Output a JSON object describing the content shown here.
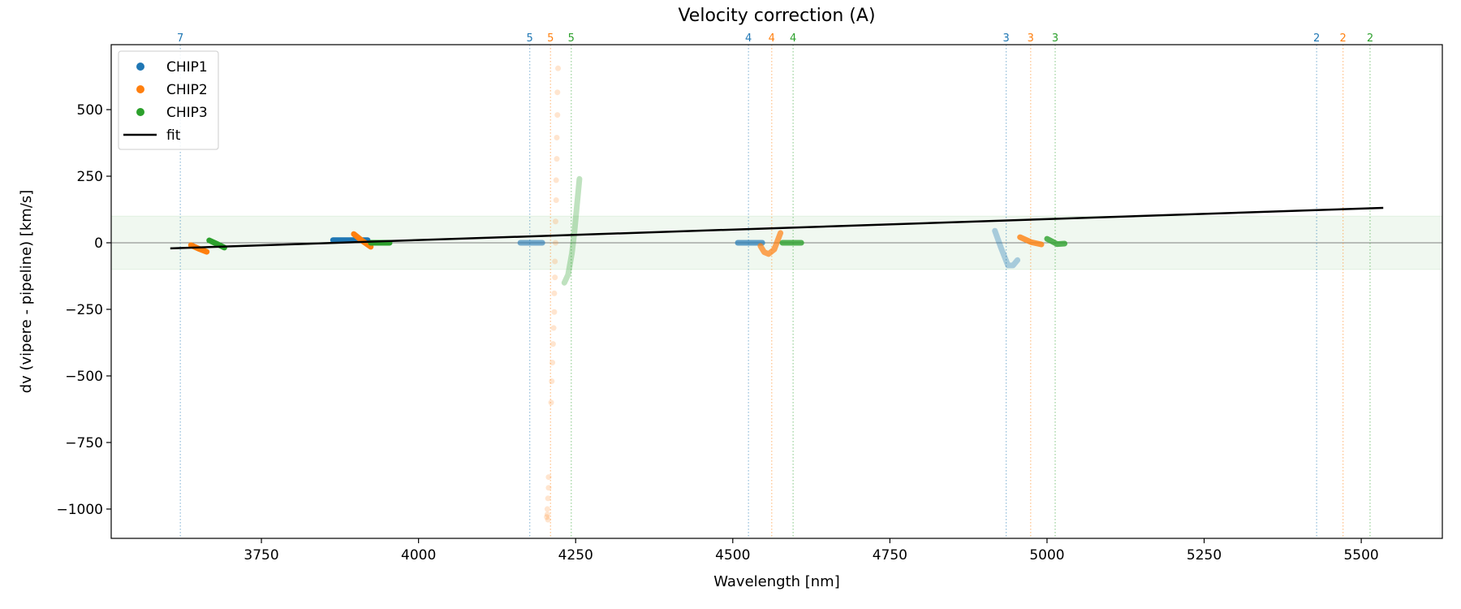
{
  "chart_data": {
    "type": "scatter",
    "title": "Velocity correction (A)",
    "xlabel": "Wavelength [nm]",
    "ylabel": "dv (vipere - pipeline) [km/s]",
    "xlim": [
      3511,
      5629
    ],
    "ylim": [
      -1110,
      744
    ],
    "xticks": [
      3750,
      4000,
      4250,
      4500,
      4750,
      5000,
      5250,
      5500
    ],
    "xtick_labels": [
      "3750",
      "4000",
      "4250",
      "4500",
      "4750",
      "5000",
      "5250",
      "5500"
    ],
    "yticks": [
      500,
      250,
      0,
      -250,
      -500,
      -750,
      -1000
    ],
    "ytick_labels": [
      "500",
      "250",
      "0",
      "−250",
      "−500",
      "−750",
      "−1000"
    ],
    "grid": false,
    "legend": {
      "placement": "top-left",
      "entries": [
        {
          "label": "CHIP1",
          "marker": "dot",
          "color": "#1f77b4"
        },
        {
          "label": "CHIP2",
          "marker": "dot",
          "color": "#ff7f0e"
        },
        {
          "label": "CHIP3",
          "marker": "dot",
          "color": "#2ca02c"
        },
        {
          "label": "fit",
          "marker": "line",
          "color": "#000000"
        }
      ]
    },
    "band": {
      "y": [
        -100,
        100
      ],
      "color": "#2ca02c"
    },
    "zero_line": 0,
    "order_markers": [
      {
        "label": "7",
        "x": 3621,
        "color": "#1f77b4"
      },
      {
        "label": "5",
        "x": 4177,
        "color": "#1f77b4"
      },
      {
        "label": "5",
        "x": 4210,
        "color": "#ff7f0e"
      },
      {
        "label": "5",
        "x": 4243,
        "color": "#2ca02c"
      },
      {
        "label": "4",
        "x": 4525,
        "color": "#1f77b4"
      },
      {
        "label": "4",
        "x": 4562,
        "color": "#ff7f0e"
      },
      {
        "label": "4",
        "x": 4596,
        "color": "#2ca02c"
      },
      {
        "label": "3",
        "x": 4935,
        "color": "#1f77b4"
      },
      {
        "label": "3",
        "x": 4974,
        "color": "#ff7f0e"
      },
      {
        "label": "3",
        "x": 5013,
        "color": "#2ca02c"
      },
      {
        "label": "2",
        "x": 5429,
        "color": "#1f77b4"
      },
      {
        "label": "2",
        "x": 5471,
        "color": "#ff7f0e"
      },
      {
        "label": "2",
        "x": 5514,
        "color": "#2ca02c"
      }
    ],
    "fit": {
      "x": [
        3605,
        5535
      ],
      "y": [
        -21,
        131
      ],
      "color": "#000000"
    },
    "series": [
      {
        "name": "CHIP1",
        "color": "#1f77b4",
        "segments": [
          {
            "x": [
              3864,
              3890,
              3919
            ],
            "y": [
              10,
              10,
              10
            ],
            "opacity": 1
          },
          {
            "x": [
              4162,
              4180,
              4197
            ],
            "y": [
              0,
              0,
              0
            ],
            "opacity": 0.6
          },
          {
            "x": [
              4508,
              4528,
              4547
            ],
            "y": [
              0,
              0,
              0
            ],
            "opacity": 0.7
          },
          {
            "x": [
              4917,
              4927,
              4938,
              4946,
              4953
            ],
            "y": [
              45,
              -20,
              -85,
              -85,
              -65
            ],
            "opacity": 0.35
          }
        ]
      },
      {
        "name": "CHIP2",
        "color": "#ff7f0e",
        "segments": [
          {
            "x": [
              3638,
              3650,
              3663
            ],
            "y": [
              -9,
              -22,
              -34
            ],
            "opacity": 1
          },
          {
            "x": [
              3897,
              3910,
              3924
            ],
            "y": [
              33,
              8,
              -15
            ],
            "opacity": 1
          },
          {
            "x": [
              4544,
              4550,
              4557,
              4566,
              4576
            ],
            "y": [
              -12,
              -35,
              -42,
              -25,
              37
            ],
            "opacity": 0.7
          },
          {
            "x": [
              4957,
              4975,
              4991
            ],
            "y": [
              21,
              2,
              -6
            ],
            "opacity": 0.8
          }
        ],
        "scatter": {
          "x": [
            4222,
            4221,
            4221,
            4220,
            4220,
            4219,
            4219,
            4218,
            4218,
            4217,
            4217,
            4216,
            4216,
            4215,
            4214,
            4213,
            4212,
            4211,
            4207,
            4207,
            4206,
            4205,
            4204,
            4205,
            4206
          ],
          "y": [
            655,
            565,
            480,
            395,
            315,
            235,
            160,
            80,
            0,
            -70,
            -130,
            -190,
            -260,
            -320,
            -380,
            -450,
            -520,
            -600,
            -880,
            -920,
            -960,
            -1000,
            -1030,
            -1020,
            -1040
          ],
          "opacity": 0.2
        }
      },
      {
        "name": "CHIP3",
        "color": "#2ca02c",
        "segments": [
          {
            "x": [
              3667,
              3679,
              3691
            ],
            "y": [
              9,
              -4,
              -18
            ],
            "opacity": 1
          },
          {
            "x": [
              3924,
              3940,
              3954
            ],
            "y": [
              0,
              0,
              0
            ],
            "opacity": 1
          },
          {
            "x": [
              4232,
              4238,
              4244,
              4248,
              4252,
              4256
            ],
            "y": [
              -150,
              -120,
              -40,
              40,
              140,
              240
            ],
            "opacity": 0.3
          },
          {
            "x": [
              4579,
              4595,
              4609
            ],
            "y": [
              0,
              0,
              0
            ],
            "opacity": 0.8
          },
          {
            "x": [
              5000,
              5008,
              5016,
              5028
            ],
            "y": [
              15,
              5,
              -5,
              -3
            ],
            "opacity": 0.8
          }
        ]
      }
    ]
  }
}
